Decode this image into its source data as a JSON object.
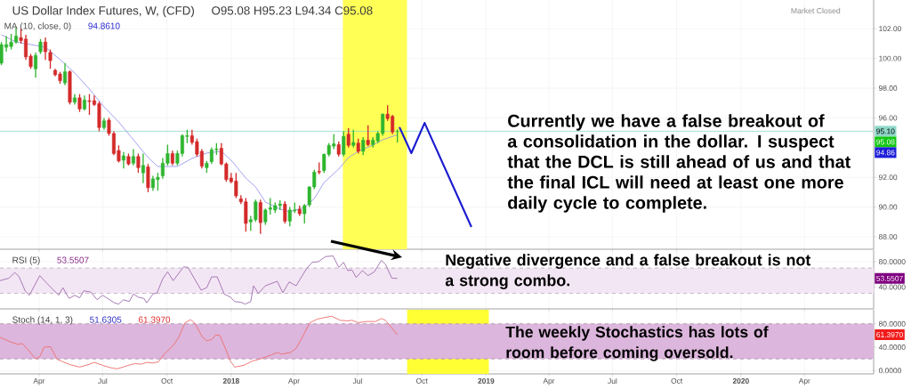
{
  "chart_data": [
    {
      "type": "candlestick",
      "title": "US Dollar Index Futures, W, (CFD)",
      "x": [
        "2017-02-06",
        "2017-02-13",
        "2017-02-20",
        "2017-02-27",
        "2017-03-06",
        "2017-03-13",
        "2017-03-20",
        "2017-03-27",
        "2017-04-03",
        "2017-04-10",
        "2017-04-17",
        "2017-04-24",
        "2017-05-01",
        "2017-05-08",
        "2017-05-15",
        "2017-05-22",
        "2017-05-29",
        "2017-06-05",
        "2017-06-12",
        "2017-06-19",
        "2017-06-26",
        "2017-07-03",
        "2017-07-10",
        "2017-07-17",
        "2017-07-24",
        "2017-07-31",
        "2017-08-07",
        "2017-08-14",
        "2017-08-21",
        "2017-08-28",
        "2017-09-04",
        "2017-09-11",
        "2017-09-18",
        "2017-09-25",
        "2017-10-02",
        "2017-10-09",
        "2017-10-16",
        "2017-10-23",
        "2017-10-30",
        "2017-11-06",
        "2017-11-13",
        "2017-11-20",
        "2017-11-27",
        "2017-12-04",
        "2017-12-11",
        "2017-12-18",
        "2017-12-25",
        "2018-01-01",
        "2018-01-08",
        "2018-01-15",
        "2018-01-22",
        "2018-01-29",
        "2018-02-05",
        "2018-02-12",
        "2018-02-19",
        "2018-02-26",
        "2018-03-05",
        "2018-03-12",
        "2018-03-19",
        "2018-03-26",
        "2018-04-02",
        "2018-04-09",
        "2018-04-16",
        "2018-04-23",
        "2018-04-30",
        "2018-05-07",
        "2018-05-14",
        "2018-05-21",
        "2018-05-28",
        "2018-06-04",
        "2018-06-11",
        "2018-06-18",
        "2018-06-25",
        "2018-07-02",
        "2018-07-09",
        "2018-07-16",
        "2018-07-23",
        "2018-07-30",
        "2018-08-06",
        "2018-08-13",
        "2018-08-20",
        "2018-08-27"
      ],
      "ohlc": [
        [
          99.68,
          101.1,
          99.55,
          100.93
        ],
        [
          100.75,
          101.5,
          100.45,
          100.93
        ],
        [
          100.8,
          101.65,
          100.6,
          101.1
        ],
        [
          101.1,
          102.1,
          101.0,
          101.5
        ],
        [
          101.4,
          102.0,
          101.0,
          101.2
        ],
        [
          101.3,
          101.6,
          99.9,
          100.1
        ],
        [
          100.15,
          100.3,
          99.3,
          99.45
        ],
        [
          99.3,
          100.4,
          98.7,
          100.2
        ],
        [
          100.45,
          101.3,
          100.3,
          101.1
        ],
        [
          101.1,
          101.4,
          99.9,
          100.45
        ],
        [
          100.4,
          100.6,
          99.3,
          99.85
        ],
        [
          99.2,
          99.3,
          98.8,
          98.9
        ],
        [
          98.95,
          99.1,
          98.3,
          98.5
        ],
        [
          98.35,
          99.7,
          98.2,
          99.1
        ],
        [
          99.1,
          99.2,
          96.9,
          97.05
        ],
        [
          97.05,
          97.6,
          96.9,
          97.35
        ],
        [
          97.35,
          97.6,
          96.4,
          96.6
        ],
        [
          96.6,
          97.5,
          96.5,
          97.2
        ],
        [
          97.15,
          97.6,
          96.2,
          97.1
        ],
        [
          97.15,
          97.5,
          96.8,
          96.9
        ],
        [
          96.95,
          97.1,
          95.1,
          95.35
        ],
        [
          95.35,
          96.0,
          95.2,
          95.8
        ],
        [
          95.85,
          96.0,
          94.8,
          94.95
        ],
        [
          94.95,
          95.1,
          93.5,
          93.6
        ],
        [
          93.8,
          94.15,
          93.0,
          93.1
        ],
        [
          93.15,
          93.7,
          92.6,
          93.45
        ],
        [
          93.4,
          93.6,
          92.8,
          92.9
        ],
        [
          92.95,
          93.9,
          92.8,
          93.4
        ],
        [
          93.4,
          93.6,
          92.3,
          92.65
        ],
        [
          92.3,
          93.6,
          91.6,
          92.8
        ],
        [
          92.7,
          92.9,
          91.0,
          91.3
        ],
        [
          91.3,
          92.1,
          91.1,
          91.9
        ],
        [
          91.85,
          92.3,
          91.1,
          92.0
        ],
        [
          92.1,
          93.3,
          91.9,
          92.95
        ],
        [
          92.95,
          94.2,
          92.8,
          93.6
        ],
        [
          93.6,
          93.8,
          92.8,
          92.95
        ],
        [
          92.95,
          93.8,
          92.8,
          93.6
        ],
        [
          93.6,
          94.9,
          93.4,
          94.8
        ],
        [
          94.75,
          95.2,
          94.3,
          94.8
        ],
        [
          94.8,
          95.2,
          94.2,
          94.35
        ],
        [
          94.4,
          94.6,
          93.4,
          93.55
        ],
        [
          93.75,
          93.9,
          92.6,
          92.75
        ],
        [
          92.65,
          93.1,
          92.3,
          92.95
        ],
        [
          93.05,
          94.0,
          92.9,
          93.85
        ],
        [
          93.85,
          94.3,
          93.5,
          93.9
        ],
        [
          93.95,
          94.3,
          92.8,
          92.9
        ],
        [
          92.9,
          93.0,
          91.7,
          91.85
        ],
        [
          91.95,
          92.3,
          91.6,
          91.7
        ],
        [
          91.75,
          92.3,
          90.6,
          90.75
        ],
        [
          90.55,
          90.8,
          90.2,
          90.35
        ],
        [
          90.35,
          90.6,
          88.35,
          88.9
        ],
        [
          89.0,
          89.4,
          88.4,
          89.15
        ],
        [
          89.15,
          90.5,
          89.0,
          90.35
        ],
        [
          90.3,
          90.5,
          88.2,
          88.95
        ],
        [
          89.0,
          89.9,
          88.8,
          89.8
        ],
        [
          89.85,
          90.6,
          89.5,
          89.95
        ],
        [
          89.8,
          90.3,
          89.6,
          90.1
        ],
        [
          90.1,
          90.45,
          89.8,
          90.2
        ],
        [
          90.2,
          90.4,
          88.9,
          89.05
        ],
        [
          89.05,
          90.0,
          88.7,
          89.8
        ],
        [
          89.75,
          90.3,
          89.6,
          89.8
        ],
        [
          89.85,
          90.1,
          89.4,
          89.55
        ],
        [
          89.55,
          90.2,
          88.9,
          90.1
        ],
        [
          90.15,
          91.4,
          90.0,
          91.35
        ],
        [
          91.35,
          92.5,
          91.2,
          92.35
        ],
        [
          92.4,
          93.0,
          92.2,
          92.35
        ],
        [
          92.45,
          93.6,
          92.3,
          93.55
        ],
        [
          93.55,
          94.3,
          93.4,
          94.15
        ],
        [
          94.1,
          94.9,
          93.9,
          94.25
        ],
        [
          94.2,
          94.4,
          93.4,
          93.55
        ],
        [
          93.55,
          95.1,
          93.4,
          94.75
        ],
        [
          94.9,
          95.3,
          94.0,
          94.15
        ],
        [
          94.15,
          95.2,
          94.0,
          94.35
        ],
        [
          94.3,
          94.6,
          93.6,
          93.75
        ],
        [
          93.75,
          94.7,
          93.5,
          94.5
        ],
        [
          94.5,
          95.5,
          94.1,
          94.2
        ],
        [
          94.2,
          94.7,
          94.0,
          94.5
        ],
        [
          94.45,
          95.1,
          94.3,
          94.95
        ],
        [
          94.95,
          96.3,
          94.8,
          96.25
        ],
        [
          96.25,
          96.85,
          95.8,
          95.95
        ],
        [
          96.1,
          96.2,
          94.9,
          95.05
        ],
        [
          95.08,
          95.23,
          94.34,
          95.08
        ]
      ],
      "series": [
        {
          "type": "line",
          "name": "MA (10, close, 0)",
          "color": "#8c8cf0",
          "x": [
            "2017-02-06",
            "2017-02-27",
            "2017-03-20",
            "2017-04-10",
            "2017-05-01",
            "2017-05-22",
            "2017-06-12",
            "2017-07-03",
            "2017-07-24",
            "2017-08-14",
            "2017-09-04",
            "2017-09-18",
            "2017-10-16",
            "2017-11-06",
            "2017-11-27",
            "2017-12-18",
            "2018-01-01",
            "2018-01-22",
            "2018-02-05",
            "2018-02-19",
            "2018-03-12",
            "2018-03-26",
            "2018-04-16",
            "2018-04-30",
            "2018-05-14",
            "2018-06-04",
            "2018-06-18",
            "2018-07-02",
            "2018-07-23",
            "2018-08-06",
            "2018-08-27"
          ],
          "values": [
            101.59,
            101.11,
            100.93,
            100.75,
            99.92,
            99.02,
            97.94,
            96.74,
            95.72,
            94.53,
            93.33,
            92.73,
            92.73,
            93.27,
            93.63,
            93.75,
            93.15,
            91.95,
            91.35,
            90.34,
            89.86,
            89.68,
            89.98,
            90.57,
            91.65,
            92.55,
            93.33,
            93.75,
            94.17,
            94.53,
            94.86
          ]
        },
        {
          "type": "line",
          "color": "#1a1ad0",
          "x": [
            "2018-08-30",
            "2018-09-16",
            "2018-10-05",
            "2018-12-11"
          ],
          "values": [
            95.37,
            93.63,
            95.66,
            88.66
          ]
        }
      ],
      "xlim": [
        "2017-02-04",
        "2020-07-09"
      ],
      "ylim": [
        87.16,
        103.93
      ],
      "xticks": [
        {
          "value": "2017-04-01",
          "label": null
        },
        {
          "value": "2017-07-01",
          "label": null
        },
        {
          "value": "2017-10-01",
          "label": null
        },
        {
          "value": "2018-01-01",
          "label": null
        },
        {
          "value": "2018-04-01",
          "label": null
        },
        {
          "value": "2018-07-01",
          "label": null
        },
        {
          "value": "2018-10-01",
          "label": null
        },
        {
          "value": "2019-01-01",
          "label": null
        },
        {
          "value": "2019-04-01",
          "label": null
        },
        {
          "value": "2019-07-01",
          "label": null
        },
        {
          "value": "2019-10-01",
          "label": null
        },
        {
          "value": "2020-01-01",
          "label": null
        },
        {
          "value": "2020-04-01",
          "label": null
        }
      ],
      "yticks": [
        {
          "value": 88,
          "label": "88.00"
        },
        {
          "value": 90,
          "label": "90.00"
        },
        {
          "value": 92,
          "label": "92.00"
        },
        {
          "value": 96,
          "label": "96.00"
        },
        {
          "value": 98,
          "label": "98.00"
        },
        {
          "value": 100,
          "label": "100.00"
        },
        {
          "value": 102,
          "label": "102.00"
        }
      ],
      "tick_labels": "y",
      "grid": true,
      "ref_lines": [
        {
          "axis": "y",
          "value": 95.1,
          "label": "95.10",
          "color": "#8fd8c8"
        }
      ],
      "bands": [
        {
          "axis": "x",
          "from": "2018-06-10",
          "to": "2018-09-10",
          "color": "#ffff55"
        }
      ],
      "annotations": [
        "O95.08  H95.23  L94.34  C95.08",
        "94.8610",
        "Market Closed",
        "Currently we have a false breakout of a consolidation in the dollar. I suspect that the DCL is still ahead of us and that the final ICL will need at least one more daily cycle to complete.",
        {
          "text": "95.08",
          "y": 95.08
        },
        "94.86"
      ]
    },
    {
      "type": "line",
      "title": "RSI (5)",
      "series": [
        {
          "color": "#a070b0",
          "x": [
            "2017-02-04",
            "2017-02-17",
            "2017-02-25",
            "2017-03-03",
            "2017-03-12",
            "2017-03-18",
            "2017-04-02",
            "2017-04-12",
            "2017-04-29",
            "2017-05-05",
            "2017-05-14",
            "2017-05-22",
            "2017-05-29",
            "2017-06-04",
            "2017-06-14",
            "2017-06-23",
            "2017-07-01",
            "2017-07-18",
            "2017-07-24",
            "2017-07-31",
            "2017-08-08",
            "2017-08-14",
            "2017-08-21",
            "2017-08-29",
            "2017-09-02",
            "2017-09-11",
            "2017-09-17",
            "2017-09-25",
            "2017-10-02",
            "2017-10-10",
            "2017-10-25",
            "2017-10-31",
            "2017-11-19",
            "2017-11-27",
            "2017-12-04",
            "2017-12-12",
            "2017-12-22",
            "2017-12-31",
            "2018-01-06",
            "2018-01-15",
            "2018-01-21",
            "2018-01-29",
            "2018-02-02",
            "2018-02-09",
            "2018-02-19",
            "2018-03-08",
            "2018-03-16",
            "2018-03-25",
            "2018-04-04",
            "2018-04-19",
            "2018-04-27",
            "2018-05-06",
            "2018-05-16",
            "2018-05-27",
            "2018-06-04",
            "2018-06-11",
            "2018-06-17",
            "2018-06-23",
            "2018-06-29",
            "2018-07-08",
            "2018-07-16",
            "2018-07-25",
            "2018-08-04",
            "2018-08-10",
            "2018-08-19",
            "2018-08-27"
          ],
          "values": [
            50,
            54,
            63,
            57,
            34,
            27,
            58,
            46,
            27,
            39,
            22,
            27,
            23,
            34,
            32,
            20,
            27,
            15,
            13,
            20,
            17,
            29,
            24,
            22,
            15,
            29,
            31,
            53,
            64,
            50,
            72,
            71,
            35,
            39,
            56,
            56,
            29,
            24,
            17,
            16,
            13,
            17,
            42,
            30,
            42,
            49,
            31,
            48,
            42,
            69,
            79,
            80,
            88,
            89,
            71,
            79,
            66,
            67,
            55,
            66,
            58,
            64,
            82,
            76,
            54,
            53.5507
          ]
        }
      ],
      "xlim": [
        "2017-02-04",
        "2020-07-09"
      ],
      "ylim": [
        5.5,
        98.2
      ],
      "xticks": [
        {
          "value": "2017-04-01",
          "label": null
        },
        {
          "value": "2017-07-01",
          "label": null
        },
        {
          "value": "2017-10-01",
          "label": null
        },
        {
          "value": "2018-01-01",
          "label": null
        },
        {
          "value": "2018-04-01",
          "label": null
        },
        {
          "value": "2018-07-01",
          "label": null
        },
        {
          "value": "2018-10-01",
          "label": null
        },
        {
          "value": "2019-01-01",
          "label": null
        },
        {
          "value": "2019-04-01",
          "label": null
        },
        {
          "value": "2019-07-01",
          "label": null
        },
        {
          "value": "2019-10-01",
          "label": null
        },
        {
          "value": "2020-01-01",
          "label": null
        },
        {
          "value": "2020-04-01",
          "label": null
        }
      ],
      "yticks": [
        {
          "value": 40,
          "label": "40.0000"
        },
        {
          "value": 80,
          "label": "80.0000"
        }
      ],
      "tick_labels": "y",
      "grid": true,
      "bands": [
        {
          "axis": "y",
          "from": 30,
          "to": 70,
          "color": "#f3e6f4"
        }
      ],
      "ref_lines": [
        {
          "axis": "y",
          "value": 30,
          "color": "#b8a8b8",
          "line_style": "dashed"
        },
        {
          "axis": "y",
          "value": 70,
          "color": "#b8a8b8",
          "line_style": "dashed"
        }
      ],
      "annotations": [
        "53.5507",
        "Negative divergence and a false breakout is not a strong combo.",
        {
          "text": "53.5507",
          "y": 53.5507
        }
      ]
    },
    {
      "type": "line",
      "title": "Stoch (14, 1, 3)",
      "series": [
        {
          "color": "#ef7070",
          "x": [
            "2017-02-04",
            "2017-02-17",
            "2017-03-01",
            "2017-03-08",
            "2017-03-16",
            "2017-03-27",
            "2017-04-02",
            "2017-04-08",
            "2017-04-17",
            "2017-04-27",
            "2017-05-05",
            "2017-05-16",
            "2017-05-29",
            "2017-06-10",
            "2017-06-19",
            "2017-07-01",
            "2017-07-12",
            "2017-07-22",
            "2017-08-04",
            "2017-08-16",
            "2017-08-25",
            "2017-09-02",
            "2017-09-11",
            "2017-09-19",
            "2017-09-27",
            "2017-10-10",
            "2017-10-18",
            "2017-10-27",
            "2017-11-04",
            "2017-11-10",
            "2017-11-21",
            "2017-11-27",
            "2017-12-04",
            "2017-12-10",
            "2017-12-16",
            "2017-12-25",
            "2017-12-31",
            "2018-01-06",
            "2018-01-19",
            "2018-01-31",
            "2018-02-09",
            "2018-02-19",
            "2018-02-28",
            "2018-03-08",
            "2018-03-14",
            "2018-03-27",
            "2018-04-04",
            "2018-04-13",
            "2018-04-23",
            "2018-05-04",
            "2018-05-12",
            "2018-05-25",
            "2018-06-06",
            "2018-06-17",
            "2018-06-23",
            "2018-07-02",
            "2018-07-14",
            "2018-07-27",
            "2018-08-04",
            "2018-08-10",
            "2018-08-27"
          ],
          "values": [
            57,
            50,
            45,
            46,
            36,
            20,
            24,
            40,
            41,
            19,
            15,
            10,
            6,
            10,
            14,
            9,
            5,
            3,
            8,
            12,
            11,
            14,
            13,
            15,
            28,
            43,
            57,
            82,
            87,
            81,
            57,
            51,
            53,
            61,
            60,
            34,
            16,
            6,
            9,
            16,
            19,
            23,
            27,
            31,
            28,
            31,
            38,
            57,
            81,
            88,
            90,
            93,
            86,
            85,
            86,
            82,
            84,
            84,
            89,
            86,
            61.397
          ]
        }
      ],
      "xlim": [
        "2017-02-04",
        "2020-07-09"
      ],
      "ylim": [
        -5.6,
        104
      ],
      "xticks": [
        {
          "value": "2017-04-01",
          "label": "Apr"
        },
        {
          "value": "2017-07-01",
          "label": "Jul"
        },
        {
          "value": "2017-10-01",
          "label": "Oct"
        },
        {
          "value": "2018-01-01",
          "label": "2018"
        },
        {
          "value": "2018-04-01",
          "label": "Apr"
        },
        {
          "value": "2018-07-01",
          "label": "Jul"
        },
        {
          "value": "2018-10-01",
          "label": "Oct"
        },
        {
          "value": "2019-01-01",
          "label": "2019"
        },
        {
          "value": "2019-04-01",
          "label": "Apr"
        },
        {
          "value": "2019-07-01",
          "label": "Jul"
        },
        {
          "value": "2019-10-01",
          "label": "Oct"
        },
        {
          "value": "2020-01-01",
          "label": "2020"
        },
        {
          "value": "2020-04-01",
          "label": "Apr"
        }
      ],
      "yticks": [
        {
          "value": 0,
          "label": "0.0000"
        },
        {
          "value": 40,
          "label": "40.0000"
        },
        {
          "value": 80,
          "label": "80.0000"
        }
      ],
      "grid": true,
      "bands": [
        {
          "axis": "x",
          "from": "2018-09-10",
          "to": "2019-01-05",
          "color": "#ffff33"
        },
        {
          "axis": "y",
          "from": 20,
          "to": 80,
          "color": "#dcb6dc"
        }
      ],
      "ref_lines": [
        {
          "axis": "y",
          "value": 20,
          "color": "#a890a8",
          "line_style": "dashed"
        },
        {
          "axis": "y",
          "value": 80,
          "color": "#a890a8",
          "line_style": "dashed"
        }
      ],
      "annotations": [
        "51.6305",
        "61.3970",
        "The weekly Stochastics has lots of room before coming oversold.",
        {
          "text": "61.3970",
          "y": 61.397
        }
      ]
    }
  ]
}
